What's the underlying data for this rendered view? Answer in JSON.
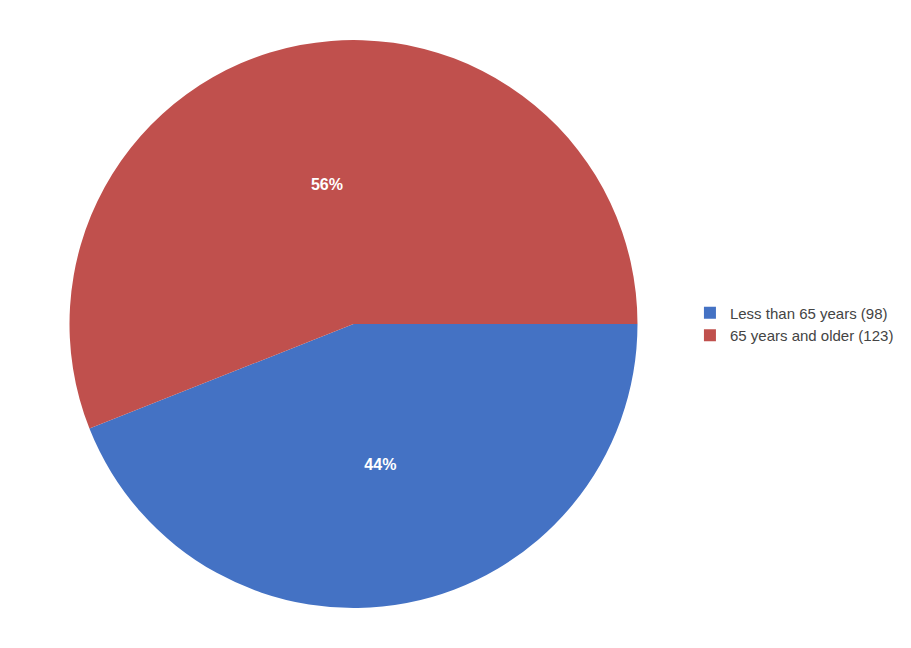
{
  "chart_data": {
    "type": "pie",
    "categories": [
      "Less than 65 years (98)",
      "65 years and older (123)"
    ],
    "values": [
      44,
      56
    ],
    "value_labels": [
      "44%",
      "56%"
    ],
    "colors": [
      "#4472C4",
      "#C0504D"
    ],
    "data_labels": true,
    "legend": "right"
  }
}
